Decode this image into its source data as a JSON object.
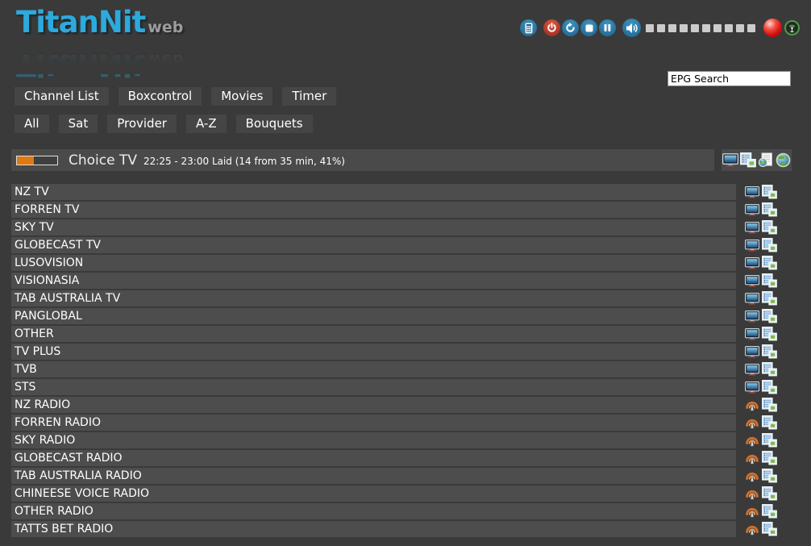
{
  "header": {
    "logo": {
      "title": "TitanNit",
      "subtitle": "web"
    },
    "controls": {
      "buttons": [
        "remote-control",
        "power",
        "reboot",
        "stop",
        "pause",
        "volume"
      ],
      "volume_squares": 10,
      "indicators": [
        "record",
        "signal"
      ]
    },
    "epg_search": {
      "value": "EPG Search"
    }
  },
  "nav": {
    "main": [
      "Channel List",
      "Boxcontrol",
      "Movies",
      "Timer"
    ],
    "filters": [
      "All",
      "Sat",
      "Provider",
      "A-Z",
      "Bouquets"
    ]
  },
  "now_playing": {
    "channel": "Choice TV",
    "epg_info": "22:25 - 23:00 Laid (14 from 35 min, 41%)",
    "progress_percent": 41,
    "actions": [
      "watch-tv",
      "epg-list",
      "stream",
      "web-browser"
    ]
  },
  "channel_list": {
    "channels": [
      {
        "name": "NZ TV",
        "type": "tv"
      },
      {
        "name": "FORREN TV",
        "type": "tv"
      },
      {
        "name": "SKY TV",
        "type": "tv"
      },
      {
        "name": "GLOBECAST TV",
        "type": "tv"
      },
      {
        "name": "LUSOVISION",
        "type": "tv"
      },
      {
        "name": "VISIONASIA",
        "type": "tv"
      },
      {
        "name": "TAB AUSTRALIA TV",
        "type": "tv"
      },
      {
        "name": "PANGLOBAL",
        "type": "tv"
      },
      {
        "name": "OTHER",
        "type": "tv"
      },
      {
        "name": "TV PLUS",
        "type": "tv"
      },
      {
        "name": "TVB",
        "type": "tv"
      },
      {
        "name": "STS",
        "type": "tv"
      },
      {
        "name": "NZ RADIO",
        "type": "radio"
      },
      {
        "name": "FORREN RADIO",
        "type": "radio"
      },
      {
        "name": "SKY RADIO",
        "type": "radio"
      },
      {
        "name": "GLOBECAST RADIO",
        "type": "radio"
      },
      {
        "name": "TAB AUSTRALIA RADIO",
        "type": "radio"
      },
      {
        "name": "CHINEESE VOICE RADIO",
        "type": "radio"
      },
      {
        "name": "OTHER RADIO",
        "type": "radio"
      },
      {
        "name": "TATTS BET RADIO",
        "type": "radio"
      }
    ]
  },
  "colors": {
    "background": "#3a3a3a",
    "row_background": "#4d4d4d",
    "button_background": "#454545",
    "logo_blue": "#2baade",
    "progress_orange": "#e0790f",
    "control_blue": "#2d7ca6",
    "power_red": "#b5362a",
    "record_red": "#d31111",
    "signal_green": "#4d9b4d"
  }
}
